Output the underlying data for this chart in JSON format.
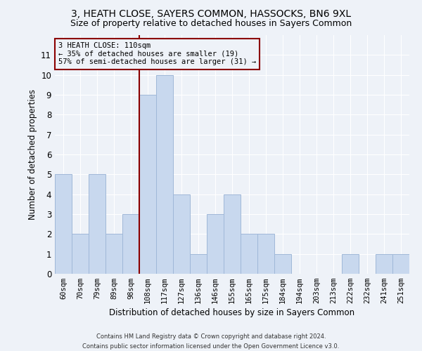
{
  "title": "3, HEATH CLOSE, SAYERS COMMON, HASSOCKS, BN6 9XL",
  "subtitle": "Size of property relative to detached houses in Sayers Common",
  "xlabel": "Distribution of detached houses by size in Sayers Common",
  "ylabel": "Number of detached properties",
  "categories": [
    "60sqm",
    "70sqm",
    "79sqm",
    "89sqm",
    "98sqm",
    "108sqm",
    "117sqm",
    "127sqm",
    "136sqm",
    "146sqm",
    "155sqm",
    "165sqm",
    "175sqm",
    "184sqm",
    "194sqm",
    "203sqm",
    "213sqm",
    "222sqm",
    "232sqm",
    "241sqm",
    "251sqm"
  ],
  "values": [
    5,
    2,
    5,
    2,
    3,
    9,
    10,
    4,
    1,
    3,
    4,
    2,
    2,
    1,
    0,
    0,
    0,
    1,
    0,
    1,
    1
  ],
  "bar_color": "#c8d8ee",
  "bar_edge_color": "#a0b8d8",
  "vline_index": 5,
  "ylim": [
    0,
    12
  ],
  "yticks": [
    0,
    1,
    2,
    3,
    4,
    5,
    6,
    7,
    8,
    9,
    10,
    11
  ],
  "annotation_title": "3 HEATH CLOSE: 110sqm",
  "annotation_line1": "← 35% of detached houses are smaller (19)",
  "annotation_line2": "57% of semi-detached houses are larger (31) →",
  "vline_color": "#8b0000",
  "annotation_box_color": "#8b0000",
  "footer_line1": "Contains HM Land Registry data © Crown copyright and database right 2024.",
  "footer_line2": "Contains public sector information licensed under the Open Government Licence v3.0.",
  "background_color": "#eef2f8",
  "grid_color": "#ffffff",
  "title_fontsize": 10,
  "subtitle_fontsize": 9,
  "axis_label_fontsize": 8.5,
  "tick_fontsize": 7.5,
  "annotation_fontsize": 7.5,
  "footer_fontsize": 6
}
